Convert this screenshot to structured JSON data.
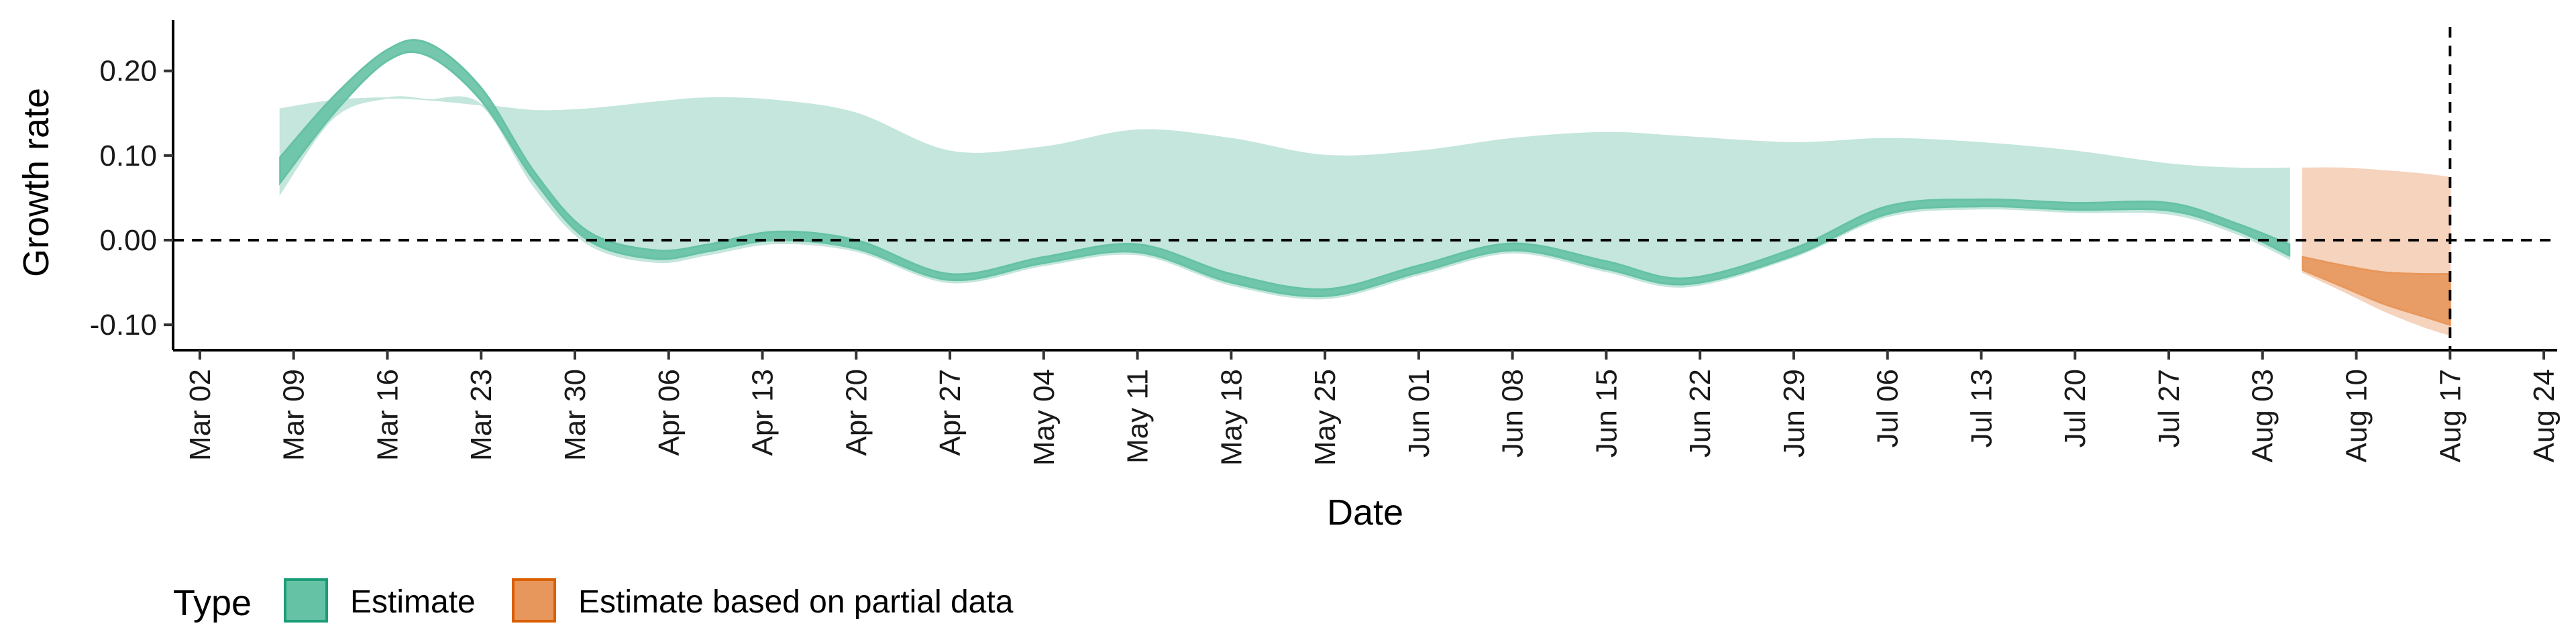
{
  "chart_data": {
    "type": "area",
    "xlabel": "Date",
    "ylabel": "Growth rate",
    "ylim": [
      -0.13,
      0.26
    ],
    "yticks": [
      -0.1,
      0.0,
      0.1,
      0.2
    ],
    "ytick_labels": [
      "-0.10",
      "0.00",
      "0.10",
      "0.20"
    ],
    "xlim": [
      "2020-02-29",
      "2020-08-25"
    ],
    "xticks": [
      "2020-03-02",
      "2020-03-09",
      "2020-03-16",
      "2020-03-23",
      "2020-03-30",
      "2020-04-06",
      "2020-04-13",
      "2020-04-20",
      "2020-04-27",
      "2020-05-04",
      "2020-05-11",
      "2020-05-18",
      "2020-05-25",
      "2020-06-01",
      "2020-06-08",
      "2020-06-15",
      "2020-06-22",
      "2020-06-29",
      "2020-07-06",
      "2020-07-13",
      "2020-07-20",
      "2020-07-27",
      "2020-08-03",
      "2020-08-10",
      "2020-08-17",
      "2020-08-24"
    ],
    "xtick_labels": [
      "Mar 02",
      "Mar 09",
      "Mar 16",
      "Mar 23",
      "Mar 30",
      "Apr 06",
      "Apr 13",
      "Apr 20",
      "Apr 27",
      "May 04",
      "May 11",
      "May 18",
      "May 25",
      "Jun 01",
      "Jun 08",
      "Jun 15",
      "Jun 22",
      "Jun 29",
      "Jul 06",
      "Jul 13",
      "Jul 20",
      "Jul 27",
      "Aug 03",
      "Aug 10",
      "Aug 17",
      "Aug 24"
    ],
    "reference_lines": [
      {
        "axis": "y",
        "value": 0,
        "style": "dashed"
      },
      {
        "axis": "x",
        "value": "2020-08-17",
        "style": "dashed"
      }
    ],
    "grid": false,
    "legend": {
      "title": "Type",
      "position": "bottom",
      "entries": [
        {
          "label": "Estimate",
          "fill": "#66c2a5",
          "stroke": "#1b9e77"
        },
        {
          "label": "Estimate based on partial data",
          "fill": "#e8975c",
          "stroke": "#d95f02"
        }
      ]
    },
    "series": [
      {
        "name": "Estimate",
        "color_outer": "#c4e6dc",
        "color_inner": "#66c2a5",
        "dates": [
          "2020-03-08",
          "2020-03-12",
          "2020-03-16",
          "2020-03-19",
          "2020-03-23",
          "2020-03-27",
          "2020-03-31",
          "2020-04-05",
          "2020-04-09",
          "2020-04-14",
          "2020-04-20",
          "2020-04-27",
          "2020-05-04",
          "2020-05-11",
          "2020-05-18",
          "2020-05-25",
          "2020-06-01",
          "2020-06-08",
          "2020-06-15",
          "2020-06-21",
          "2020-06-29",
          "2020-07-06",
          "2020-07-13",
          "2020-07-20",
          "2020-07-27",
          "2020-08-01",
          "2020-08-05"
        ],
        "outer_upper": [
          0.155,
          0.165,
          0.168,
          0.166,
          0.16,
          0.153,
          0.155,
          0.163,
          0.168,
          0.165,
          0.15,
          0.105,
          0.11,
          0.13,
          0.12,
          0.1,
          0.105,
          0.12,
          0.127,
          0.122,
          0.115,
          0.12,
          0.115,
          0.105,
          0.09,
          0.085,
          0.085
        ],
        "inner_upper": [
          0.098,
          0.17,
          0.225,
          0.233,
          0.18,
          0.08,
          0.01,
          -0.012,
          -0.005,
          0.01,
          0.0,
          -0.04,
          -0.02,
          -0.005,
          -0.04,
          -0.058,
          -0.03,
          -0.004,
          -0.025,
          -0.045,
          -0.01,
          0.04,
          0.048,
          0.044,
          0.044,
          0.02,
          -0.005
        ],
        "inner_lower": [
          0.068,
          0.15,
          0.212,
          0.218,
          0.165,
          0.07,
          0.0,
          -0.022,
          -0.013,
          0.0,
          -0.01,
          -0.047,
          -0.027,
          -0.014,
          -0.05,
          -0.066,
          -0.038,
          -0.012,
          -0.034,
          -0.052,
          -0.018,
          0.031,
          0.04,
          0.036,
          0.035,
          0.012,
          -0.018
        ],
        "outer_lower": [
          0.055,
          0.145,
          0.168,
          0.166,
          0.16,
          0.062,
          -0.005,
          -0.026,
          -0.017,
          -0.004,
          -0.013,
          -0.05,
          -0.03,
          -0.017,
          -0.053,
          -0.069,
          -0.041,
          -0.015,
          -0.037,
          -0.055,
          -0.02,
          0.028,
          0.037,
          0.033,
          0.031,
          0.008,
          -0.022
        ]
      },
      {
        "name": "Estimate based on partial data",
        "color_outer": "#f5d3bd",
        "color_inner": "#e8975c",
        "dates": [
          "2020-08-06",
          "2020-08-09",
          "2020-08-12",
          "2020-08-15",
          "2020-08-17"
        ],
        "outer_upper": [
          0.085,
          0.085,
          0.082,
          0.078,
          0.074
        ],
        "inner_upper": [
          -0.02,
          -0.03,
          -0.038,
          -0.04,
          -0.04
        ],
        "inner_lower": [
          -0.035,
          -0.055,
          -0.075,
          -0.09,
          -0.1
        ],
        "outer_lower": [
          -0.038,
          -0.06,
          -0.083,
          -0.102,
          -0.112
        ]
      }
    ]
  }
}
